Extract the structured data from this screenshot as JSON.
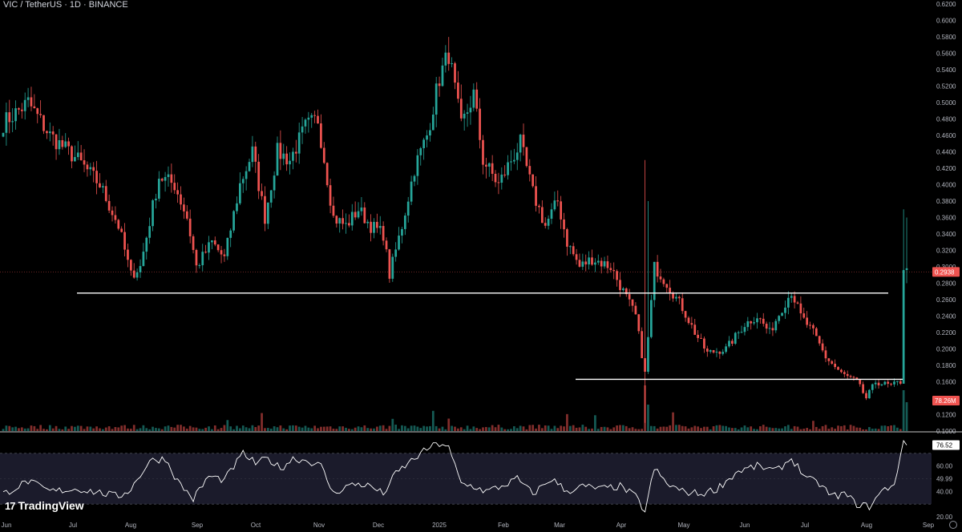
{
  "header": {
    "symbol_title": "VIC / TetherUS · 1D · BINANCE"
  },
  "branding": {
    "name": "TradingView",
    "logo_mark": "17"
  },
  "colors": {
    "background": "#000000",
    "up": "#26a69a",
    "down": "#ef5350",
    "line": "#ffffff",
    "rsi": "#ffffff",
    "last_price_badge": "#ef5350",
    "volume_badge": "#ef5350",
    "rsi_badge": "#ffffff"
  },
  "chart_data": [
    {
      "type": "candlestick",
      "title": "VIC / TetherUS · 1D · BINANCE",
      "x_tick_labels": [
        "Jun",
        "Jul",
        "Aug",
        "Sep",
        "Oct",
        "Nov",
        "Dec",
        "2025",
        "Feb",
        "Mar",
        "Apr",
        "May",
        "Jun",
        "Jul",
        "Aug",
        "Sep"
      ],
      "y_tick_labels": [
        "0.6200",
        "0.6000",
        "0.5800",
        "0.5600",
        "0.5400",
        "0.5200",
        "0.5000",
        "0.4800",
        "0.4600",
        "0.4400",
        "0.4200",
        "0.4000",
        "0.3800",
        "0.3600",
        "0.3400",
        "0.3200",
        "0.3000",
        "0.2800",
        "0.2600",
        "0.2400",
        "0.2200",
        "0.2000",
        "0.1800",
        "0.1600",
        "0.1400",
        "0.1200",
        "0.1000"
      ],
      "ylim": [
        0.1,
        0.62
      ],
      "last_price": "0.2938",
      "volume_label": "78.26M",
      "horizontal_lines": [
        0.268,
        0.163
      ],
      "close_path": [
        [
          0,
          0.475
        ],
        [
          8,
          0.5
        ],
        [
          15,
          0.46
        ],
        [
          24,
          0.43
        ],
        [
          31,
          0.4
        ],
        [
          37,
          0.35
        ],
        [
          41,
          0.29
        ],
        [
          44,
          0.3
        ],
        [
          50,
          0.41
        ],
        [
          55,
          0.4
        ],
        [
          59,
          0.36
        ],
        [
          62,
          0.3
        ],
        [
          67,
          0.33
        ],
        [
          71,
          0.31
        ],
        [
          76,
          0.4
        ],
        [
          80,
          0.44
        ],
        [
          84,
          0.36
        ],
        [
          88,
          0.44
        ],
        [
          92,
          0.43
        ],
        [
          97,
          0.47
        ],
        [
          101,
          0.48
        ],
        [
          106,
          0.36
        ],
        [
          110,
          0.35
        ],
        [
          114,
          0.37
        ],
        [
          118,
          0.35
        ],
        [
          122,
          0.34
        ],
        [
          124,
          0.29
        ],
        [
          128,
          0.35
        ],
        [
          132,
          0.42
        ],
        [
          136,
          0.46
        ],
        [
          140,
          0.53
        ],
        [
          143,
          0.56
        ],
        [
          147,
          0.47
        ],
        [
          151,
          0.51
        ],
        [
          154,
          0.43
        ],
        [
          159,
          0.4
        ],
        [
          163,
          0.43
        ],
        [
          166,
          0.45
        ],
        [
          170,
          0.39
        ],
        [
          174,
          0.35
        ],
        [
          178,
          0.38
        ],
        [
          181,
          0.33
        ],
        [
          185,
          0.3
        ],
        [
          189,
          0.31
        ],
        [
          195,
          0.3
        ],
        [
          199,
          0.27
        ],
        [
          203,
          0.24
        ],
        [
          206,
          0.17
        ],
        [
          209,
          0.3
        ],
        [
          213,
          0.28
        ],
        [
          218,
          0.25
        ],
        [
          222,
          0.22
        ],
        [
          226,
          0.195
        ],
        [
          232,
          0.2
        ],
        [
          238,
          0.23
        ],
        [
          242,
          0.24
        ],
        [
          246,
          0.22
        ],
        [
          250,
          0.25
        ],
        [
          253,
          0.27
        ],
        [
          256,
          0.24
        ],
        [
          260,
          0.22
        ],
        [
          264,
          0.19
        ],
        [
          269,
          0.17
        ],
        [
          274,
          0.16
        ],
        [
          277,
          0.14
        ],
        [
          280,
          0.16
        ],
        [
          285,
          0.155
        ],
        [
          288,
          0.16
        ],
        [
          289,
          0.3
        ],
        [
          290,
          0.2938
        ]
      ],
      "volume_spikes": [
        [
          206,
          0.95
        ],
        [
          207,
          0.55
        ],
        [
          289,
          0.85
        ],
        [
          290,
          0.6
        ]
      ],
      "rsi": {
        "value_label": "76.52",
        "y_tick_labels": [
          "60.00",
          "49.99",
          "40.00",
          "20.00"
        ],
        "ylim": [
          20,
          80
        ],
        "bands": [
          70,
          30
        ],
        "path": [
          [
            0,
            38
          ],
          [
            8,
            48
          ],
          [
            15,
            40
          ],
          [
            24,
            42
          ],
          [
            31,
            39
          ],
          [
            37,
            36
          ],
          [
            41,
            42
          ],
          [
            47,
            64
          ],
          [
            52,
            66
          ],
          [
            56,
            48
          ],
          [
            61,
            34
          ],
          [
            66,
            52
          ],
          [
            71,
            49
          ],
          [
            77,
            70
          ],
          [
            81,
            62
          ],
          [
            85,
            66
          ],
          [
            89,
            58
          ],
          [
            93,
            66
          ],
          [
            98,
            64
          ],
          [
            102,
            60
          ],
          [
            106,
            38
          ],
          [
            110,
            44
          ],
          [
            114,
            46
          ],
          [
            118,
            44
          ],
          [
            122,
            38
          ],
          [
            126,
            54
          ],
          [
            132,
            66
          ],
          [
            137,
            75
          ],
          [
            141,
            78
          ],
          [
            143,
            74
          ],
          [
            147,
            46
          ],
          [
            151,
            44
          ],
          [
            155,
            40
          ],
          [
            160,
            44
          ],
          [
            165,
            50
          ],
          [
            170,
            38
          ],
          [
            176,
            50
          ],
          [
            181,
            40
          ],
          [
            186,
            44
          ],
          [
            192,
            42
          ],
          [
            198,
            44
          ],
          [
            203,
            36
          ],
          [
            206,
            24
          ],
          [
            209,
            58
          ],
          [
            213,
            46
          ],
          [
            218,
            40
          ],
          [
            224,
            38
          ],
          [
            229,
            42
          ],
          [
            236,
            56
          ],
          [
            242,
            60
          ],
          [
            248,
            56
          ],
          [
            253,
            66
          ],
          [
            258,
            50
          ],
          [
            262,
            46
          ],
          [
            266,
            36
          ],
          [
            270,
            38
          ],
          [
            274,
            30
          ],
          [
            278,
            28
          ],
          [
            282,
            40
          ],
          [
            286,
            46
          ],
          [
            289,
            80
          ],
          [
            290,
            76.52
          ]
        ]
      }
    }
  ]
}
